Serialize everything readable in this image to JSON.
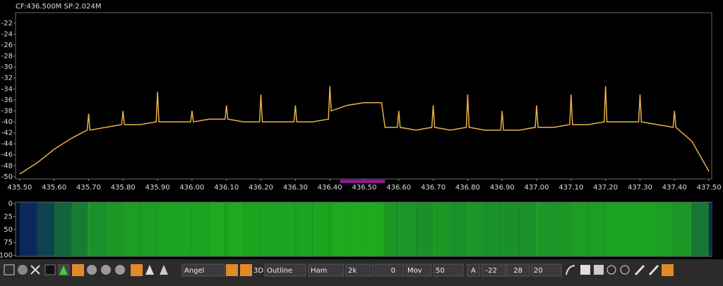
{
  "header": {
    "info": "CF:436.500M SP:2.024M"
  },
  "chart_data": [
    {
      "type": "line",
      "color": "#e8b04a",
      "x": [
        435.5,
        435.55,
        435.6,
        435.65,
        435.696,
        435.7,
        435.704,
        435.75,
        435.796,
        435.8,
        435.804,
        435.85,
        435.896,
        435.9,
        435.904,
        435.95,
        435.996,
        436.0,
        436.004,
        436.05,
        436.096,
        436.1,
        436.104,
        436.15,
        436.196,
        436.2,
        436.204,
        436.25,
        436.296,
        436.3,
        436.304,
        436.35,
        436.396,
        436.4,
        436.404,
        436.45,
        436.5,
        436.55,
        436.56,
        436.596,
        436.6,
        436.604,
        436.65,
        436.696,
        436.7,
        436.704,
        436.75,
        436.796,
        436.8,
        436.804,
        436.85,
        436.896,
        436.9,
        436.904,
        436.95,
        436.996,
        437.0,
        437.004,
        437.05,
        437.096,
        437.1,
        437.104,
        437.15,
        437.196,
        437.2,
        437.204,
        437.25,
        437.296,
        437.3,
        437.304,
        437.35,
        437.396,
        437.4,
        437.404,
        437.45,
        437.5
      ],
      "values": [
        -49.5,
        -47.5,
        -45,
        -43,
        -41.5,
        -38.5,
        -41.5,
        -41,
        -40.5,
        -38,
        -40.5,
        -40.5,
        -40,
        -34.5,
        -40,
        -40,
        -40,
        -38,
        -40,
        -39.5,
        -39.5,
        -37,
        -39.5,
        -40,
        -40,
        -35,
        -40,
        -40,
        -40,
        -37,
        -40,
        -40,
        -39.5,
        -33.5,
        -38,
        -37,
        -36.5,
        -36.5,
        -41,
        -41,
        -38,
        -41,
        -41.5,
        -41,
        -37,
        -41,
        -41.5,
        -41,
        -35,
        -41,
        -41.5,
        -41.5,
        -38,
        -41.5,
        -41.5,
        -41,
        -37,
        -41,
        -41,
        -40.5,
        -35,
        -40.5,
        -40.5,
        -40,
        -33.5,
        -40,
        -40,
        -40,
        -35,
        -40,
        -40.5,
        -41,
        -38,
        -41,
        -43.5,
        -49
      ],
      "xlim": [
        435.488,
        437.508
      ],
      "ylim": [
        -50.4,
        -20.1
      ],
      "yticks": [
        -22,
        -24,
        -26,
        -28,
        -30,
        -32,
        -34,
        -36,
        -38,
        -40,
        -42,
        -44,
        -46,
        -48,
        -50
      ],
      "xticks": [
        {
          "value": 435.5,
          "label": "435.50"
        },
        {
          "value": 435.6,
          "label": "435.60"
        },
        {
          "value": 435.7,
          "label": "435.70"
        },
        {
          "value": 435.8,
          "label": "435.80"
        },
        {
          "value": 435.9,
          "label": "435.90"
        },
        {
          "value": 436.0,
          "label": "436.00"
        },
        {
          "value": 436.1,
          "label": "436.10"
        },
        {
          "value": 436.2,
          "label": "436.20"
        },
        {
          "value": 436.3,
          "label": "436.30"
        },
        {
          "value": 436.4,
          "label": "436.40"
        },
        {
          "value": 436.5,
          "label": "436.50"
        },
        {
          "value": 436.6,
          "label": "436.60"
        },
        {
          "value": 436.7,
          "label": "436.70"
        },
        {
          "value": 436.8,
          "label": "436.80"
        },
        {
          "value": 436.9,
          "label": "436.90"
        },
        {
          "value": 437.0,
          "label": "437.00"
        },
        {
          "value": 437.1,
          "label": "437.10"
        },
        {
          "value": 437.2,
          "label": "437.20"
        },
        {
          "value": 437.3,
          "label": "437.30"
        },
        {
          "value": 437.4,
          "label": "437.40"
        },
        {
          "value": 437.5,
          "label": "437.50"
        }
      ],
      "channel_marker": [
        436.43,
        436.56
      ],
      "channel_color": "#8b1a8b"
    },
    {
      "type": "waterfall",
      "ylim": [
        -3,
        102
      ],
      "yticks": [
        0,
        25,
        50,
        75,
        100
      ]
    }
  ],
  "toolbar": {
    "label_3d": "3D",
    "palette": "Angel",
    "style": "Outline",
    "window": "Ham",
    "fft_size": "2k",
    "averaging": "0",
    "avg_mode": "Mov",
    "rate": "50",
    "auto": "A",
    "ref": "-22",
    "range": "28",
    "bins": "20"
  }
}
